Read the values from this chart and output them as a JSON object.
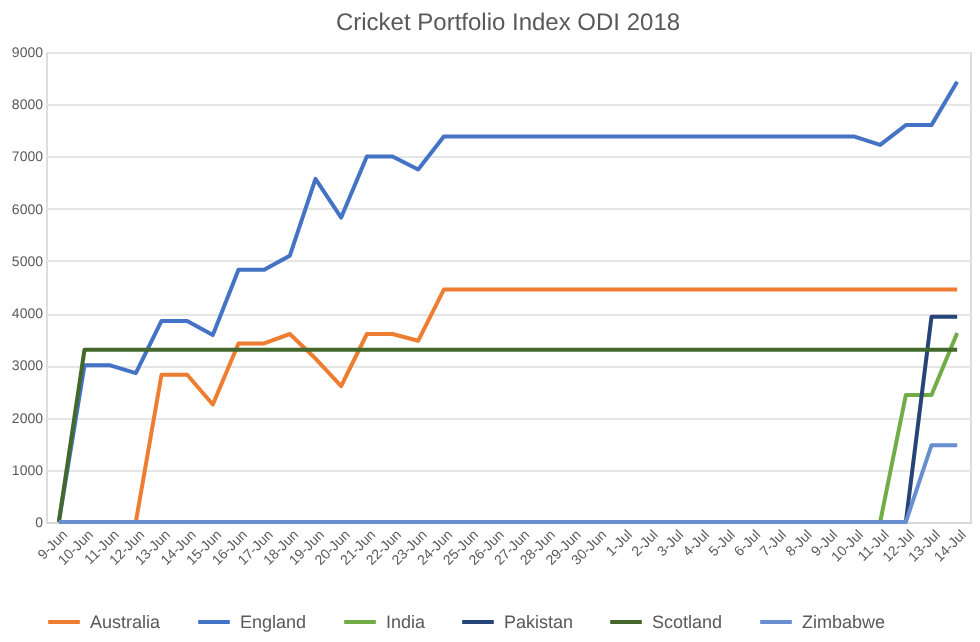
{
  "chart_data": {
    "type": "line",
    "title": "Cricket Portfolio Index ODI 2018",
    "categories": [
      "9-Jun",
      "10-Jun",
      "11-Jun",
      "12-Jun",
      "13-Jun",
      "14-Jun",
      "15-Jun",
      "16-Jun",
      "17-Jun",
      "18-Jun",
      "19-Jun",
      "20-Jun",
      "21-Jun",
      "22-Jun",
      "23-Jun",
      "24-Jun",
      "25-Jun",
      "26-Jun",
      "27-Jun",
      "28-Jun",
      "29-Jun",
      "30-Jun",
      "1-Jul",
      "2-Jul",
      "3-Jul",
      "4-Jul",
      "5-Jul",
      "6-Jul",
      "7-Jul",
      "8-Jul",
      "9-Jul",
      "10-Jul",
      "11-Jul",
      "12-Jul",
      "13-Jul",
      "14-Jul"
    ],
    "series": [
      {
        "name": "Australia",
        "color": "#ed7d31",
        "values": [
          null,
          null,
          null,
          0,
          2820,
          2820,
          2250,
          3420,
          3420,
          3600,
          3130,
          2600,
          3600,
          3600,
          3470,
          4450,
          4450,
          4450,
          4450,
          4450,
          4450,
          4450,
          4450,
          4450,
          4450,
          4450,
          4450,
          4450,
          4450,
          4450,
          4450,
          4450,
          4450,
          4450,
          4450,
          4450
        ]
      },
      {
        "name": "England",
        "color": "#4472c4",
        "values": [
          0,
          3000,
          3000,
          2850,
          3850,
          3850,
          3580,
          4830,
          4830,
          5100,
          6570,
          5830,
          7000,
          7000,
          6750,
          7380,
          7380,
          7380,
          7380,
          7380,
          7380,
          7380,
          7380,
          7380,
          7380,
          7380,
          7380,
          7380,
          7380,
          7380,
          7380,
          7380,
          7220,
          7600,
          7600,
          8430
        ]
      },
      {
        "name": "India",
        "color": "#70ad47",
        "values": [
          null,
          null,
          null,
          null,
          null,
          null,
          null,
          null,
          null,
          null,
          null,
          null,
          null,
          null,
          null,
          null,
          null,
          null,
          null,
          null,
          null,
          null,
          null,
          null,
          null,
          null,
          null,
          null,
          null,
          null,
          null,
          null,
          0,
          2430,
          2430,
          3620
        ]
      },
      {
        "name": "Pakistan",
        "color": "#264478",
        "values": [
          null,
          null,
          null,
          null,
          null,
          null,
          null,
          null,
          null,
          null,
          null,
          null,
          null,
          null,
          null,
          null,
          null,
          null,
          null,
          null,
          null,
          null,
          null,
          null,
          null,
          null,
          null,
          null,
          null,
          null,
          null,
          null,
          null,
          0,
          3930,
          3930
        ]
      },
      {
        "name": "Scotland",
        "color": "#43682b",
        "values": [
          0,
          3300,
          3300,
          3300,
          3300,
          3300,
          3300,
          3300,
          3300,
          3300,
          3300,
          3300,
          3300,
          3300,
          3300,
          3300,
          3300,
          3300,
          3300,
          3300,
          3300,
          3300,
          3300,
          3300,
          3300,
          3300,
          3300,
          3300,
          3300,
          3300,
          3300,
          3300,
          3300,
          3300,
          3300,
          3300
        ]
      },
      {
        "name": "Zimbabwe",
        "color": "#698ed0",
        "values": [
          0,
          0,
          0,
          0,
          0,
          0,
          0,
          0,
          0,
          0,
          0,
          0,
          0,
          0,
          0,
          0,
          0,
          0,
          0,
          0,
          0,
          0,
          0,
          0,
          0,
          0,
          0,
          0,
          0,
          0,
          0,
          0,
          0,
          0,
          1470,
          1470
        ]
      }
    ],
    "ylim": [
      0,
      9000
    ],
    "yticks": [
      0,
      1000,
      2000,
      3000,
      4000,
      5000,
      6000,
      7000,
      8000,
      9000
    ],
    "grid": "y",
    "legend": "bottom",
    "marker": "none",
    "line_style": "solid"
  }
}
